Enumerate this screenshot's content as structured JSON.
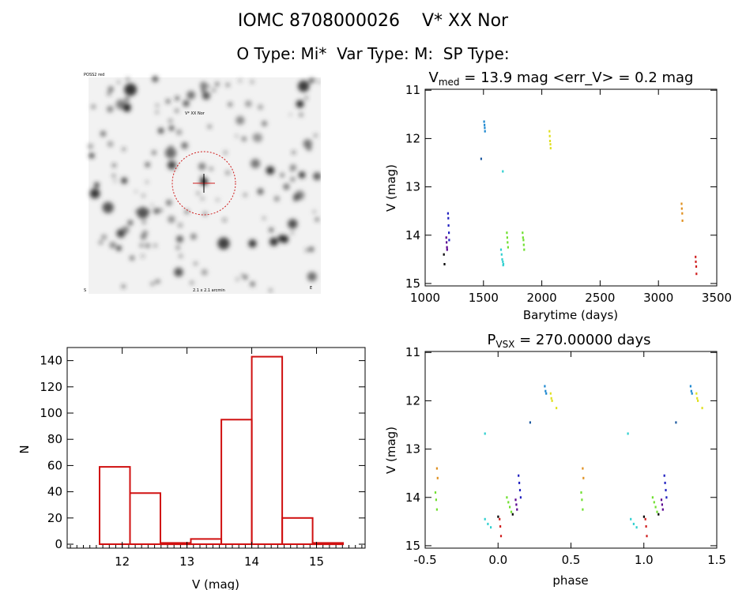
{
  "header": {
    "line1": "IOMC 8708000026    V* XX Nor",
    "line2": "O Type: Mi*  Var Type: M:  SP Type:"
  },
  "image": {
    "label_top_left": "POSS2 red",
    "label_marker": "V* XX Nor",
    "label_bottom_left": "S",
    "label_bottom_mid": "2.1 x 2.1 arcmin",
    "label_bottom_right": "E"
  },
  "chart_data": [
    {
      "type": "scatter",
      "title": "V_med = 13.9 mag <err_V> = 0.2 mag",
      "title_parts": {
        "v": "V",
        "sub": "med",
        "rest": " = 13.9 mag <err_V> = 0.2 mag"
      },
      "xlabel": "Barytime (days)",
      "ylabel": "V (mag)",
      "xlim": [
        1000,
        3500
      ],
      "ylim": [
        15.05,
        10.98
      ],
      "xticks": [
        "1000",
        "1500",
        "2000",
        "2500",
        "3000",
        "3500"
      ],
      "xtick_values": [
        1000,
        1500,
        2000,
        2500,
        3000,
        3500
      ],
      "yticks": [
        "11",
        "12",
        "13",
        "14",
        "15"
      ],
      "ytick_values": [
        11,
        12,
        13,
        14,
        15
      ],
      "series": [
        {
          "color": "#2020c0",
          "x": [
            1195,
            1198,
            1200,
            1203,
            1205
          ],
          "y": [
            13.55,
            13.65,
            13.8,
            13.95,
            14.1
          ]
        },
        {
          "color": "#5a0090",
          "x": [
            1180,
            1183,
            1186,
            1188
          ],
          "y": [
            14.05,
            14.15,
            14.25,
            14.3
          ]
        },
        {
          "color": "#000000",
          "x": [
            1160,
            1165
          ],
          "y": [
            14.4,
            14.6
          ]
        },
        {
          "color": "#1e88d0",
          "x": [
            1505,
            1508,
            1510,
            1512
          ],
          "y": [
            11.65,
            11.72,
            11.78,
            11.85
          ]
        },
        {
          "color": "#1e5aa0",
          "x": [
            1480
          ],
          "y": [
            12.42
          ]
        },
        {
          "color": "#30d0d0",
          "x": [
            1650,
            1655,
            1660,
            1665,
            1668,
            1670
          ],
          "y": [
            14.3,
            14.4,
            14.5,
            14.55,
            14.62,
            14.6
          ]
        },
        {
          "color": "#30d0d0",
          "x": [
            1665
          ],
          "y": [
            12.68
          ]
        },
        {
          "color": "#70e030",
          "x": [
            1700,
            1703,
            1706,
            1710
          ],
          "y": [
            13.95,
            14.05,
            14.15,
            14.25
          ]
        },
        {
          "color": "#70e030",
          "x": [
            1835,
            1838,
            1842,
            1845,
            1848
          ],
          "y": [
            13.95,
            14.05,
            14.1,
            14.2,
            14.3
          ]
        },
        {
          "color": "#e0e020",
          "x": [
            2065,
            2068,
            2070,
            2073,
            2075
          ],
          "y": [
            11.85,
            11.95,
            12.05,
            12.12,
            12.2
          ]
        },
        {
          "color": "#e09020",
          "x": [
            3198,
            3200,
            3203,
            3205
          ],
          "y": [
            13.35,
            13.45,
            13.55,
            13.7
          ]
        },
        {
          "color": "#d02020",
          "x": [
            3318,
            3320,
            3323,
            3325
          ],
          "y": [
            14.45,
            14.55,
            14.65,
            14.8
          ]
        }
      ]
    },
    {
      "type": "bar",
      "title": "",
      "xlabel": "V (mag)",
      "ylabel": "N",
      "xlim": [
        11.15,
        15.75
      ],
      "ylim": [
        -3,
        150
      ],
      "xticks": [
        "12",
        "13",
        "14",
        "15"
      ],
      "xtick_values": [
        12,
        13,
        14,
        15
      ],
      "yticks": [
        "0",
        "20",
        "40",
        "60",
        "80",
        "100",
        "120",
        "140"
      ],
      "ytick_values": [
        0,
        20,
        40,
        60,
        80,
        100,
        120,
        140
      ],
      "bin_edges": [
        11.65,
        12.12,
        12.59,
        13.06,
        13.53,
        14.0,
        14.47,
        14.94,
        15.41
      ],
      "values": [
        59,
        39,
        1,
        4,
        95,
        143,
        20,
        1
      ],
      "color": "#d01010"
    },
    {
      "type": "scatter",
      "title": "P_VSX = 270.00000 days",
      "title_parts": {
        "v": "P",
        "sub": "VSX",
        "rest": " = 270.00000 days"
      },
      "xlabel": "phase",
      "ylabel": "V (mag)",
      "xlim": [
        -0.5,
        1.5
      ],
      "ylim": [
        15.05,
        10.98
      ],
      "xticks": [
        "-0.5",
        "0.0",
        "0.5",
        "1.0",
        "1.5"
      ],
      "xtick_values": [
        -0.5,
        0.0,
        0.5,
        1.0,
        1.5
      ],
      "yticks": [
        "11",
        "12",
        "13",
        "14",
        "15"
      ],
      "ytick_values": [
        11,
        12,
        13,
        14,
        15
      ],
      "series": [
        {
          "color": "#1e88d0",
          "x": [
            0.32,
            0.325,
            0.33,
            1.32,
            1.325,
            1.33
          ],
          "y": [
            11.7,
            11.8,
            11.85,
            11.7,
            11.8,
            11.85
          ]
        },
        {
          "color": "#1e5aa0",
          "x": [
            0.22,
            1.22
          ],
          "y": [
            12.45,
            12.45
          ]
        },
        {
          "color": "#e0e020",
          "x": [
            0.36,
            0.365,
            0.37,
            0.4,
            1.36,
            1.365,
            1.37,
            1.4
          ],
          "y": [
            11.85,
            11.95,
            12.0,
            12.15,
            11.85,
            11.95,
            12.0,
            12.15
          ]
        },
        {
          "color": "#30d0d0",
          "x": [
            -0.09,
            -0.07,
            -0.05,
            0.91,
            0.93,
            0.95
          ],
          "y": [
            14.45,
            14.55,
            14.62,
            14.45,
            14.55,
            14.62
          ]
        },
        {
          "color": "#30d0d0",
          "x": [
            -0.09,
            0.89
          ],
          "y": [
            12.68,
            12.68
          ]
        },
        {
          "color": "#70e030",
          "x": [
            -0.43,
            -0.425,
            -0.42,
            0.57,
            0.575,
            0.58,
            0.06,
            0.07,
            0.08,
            0.09,
            1.06,
            1.07,
            1.08,
            1.09
          ],
          "y": [
            13.9,
            14.05,
            14.25,
            13.9,
            14.05,
            14.25,
            14.0,
            14.1,
            14.2,
            14.3,
            14.0,
            14.1,
            14.2,
            14.3
          ]
        },
        {
          "color": "#e09020",
          "x": [
            -0.42,
            -0.415,
            0.58,
            0.585
          ],
          "y": [
            13.4,
            13.6,
            13.4,
            13.6
          ]
        },
        {
          "color": "#2020c0",
          "x": [
            0.14,
            0.145,
            0.15,
            0.155,
            1.14,
            1.145,
            1.15,
            1.155
          ],
          "y": [
            13.55,
            13.7,
            13.85,
            14.0,
            13.55,
            13.7,
            13.85,
            14.0
          ]
        },
        {
          "color": "#5a0090",
          "x": [
            0.12,
            0.125,
            0.13,
            1.12,
            1.125,
            1.13
          ],
          "y": [
            14.05,
            14.15,
            14.25,
            14.05,
            14.15,
            14.25
          ]
        },
        {
          "color": "#d02020",
          "x": [
            0.01,
            0.015,
            0.02,
            1.01,
            1.015,
            1.02
          ],
          "y": [
            14.45,
            14.6,
            14.8,
            14.45,
            14.6,
            14.8
          ]
        },
        {
          "color": "#000000",
          "x": [
            0.0,
            0.1,
            1.0,
            1.1
          ],
          "y": [
            14.4,
            14.35,
            14.4,
            14.35
          ]
        }
      ]
    }
  ]
}
